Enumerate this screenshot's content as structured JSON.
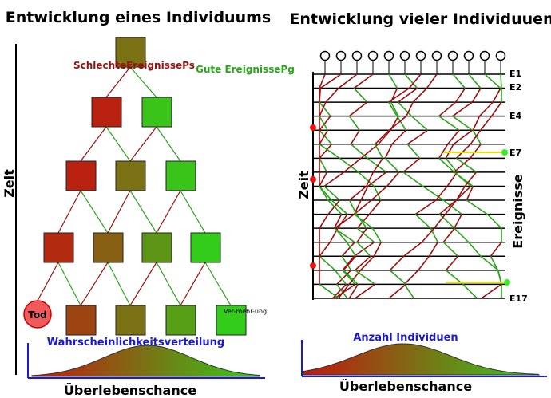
{
  "left": {
    "title": "Entwicklung eines Individuums",
    "bad_label": "SchlechteEreignissePs",
    "good_label": "Gute EreignissePg",
    "axis_label": "Zeit",
    "death": "Tod",
    "reproduction": "Ver-mehr-ung",
    "distribution_label": "Wahrscheinlichkeitsverteilung",
    "x_label": "Überlebenschance"
  },
  "right": {
    "title": "Entwicklung vieler Individuuen",
    "axis_label": "Zeit",
    "events_label": "Ereignisse",
    "event_labels": [
      "E1",
      "E2",
      "E4",
      "E7",
      "E17"
    ],
    "distribution_label": "Anzahl Individuen",
    "x_label": "Überlebenschance"
  }
}
